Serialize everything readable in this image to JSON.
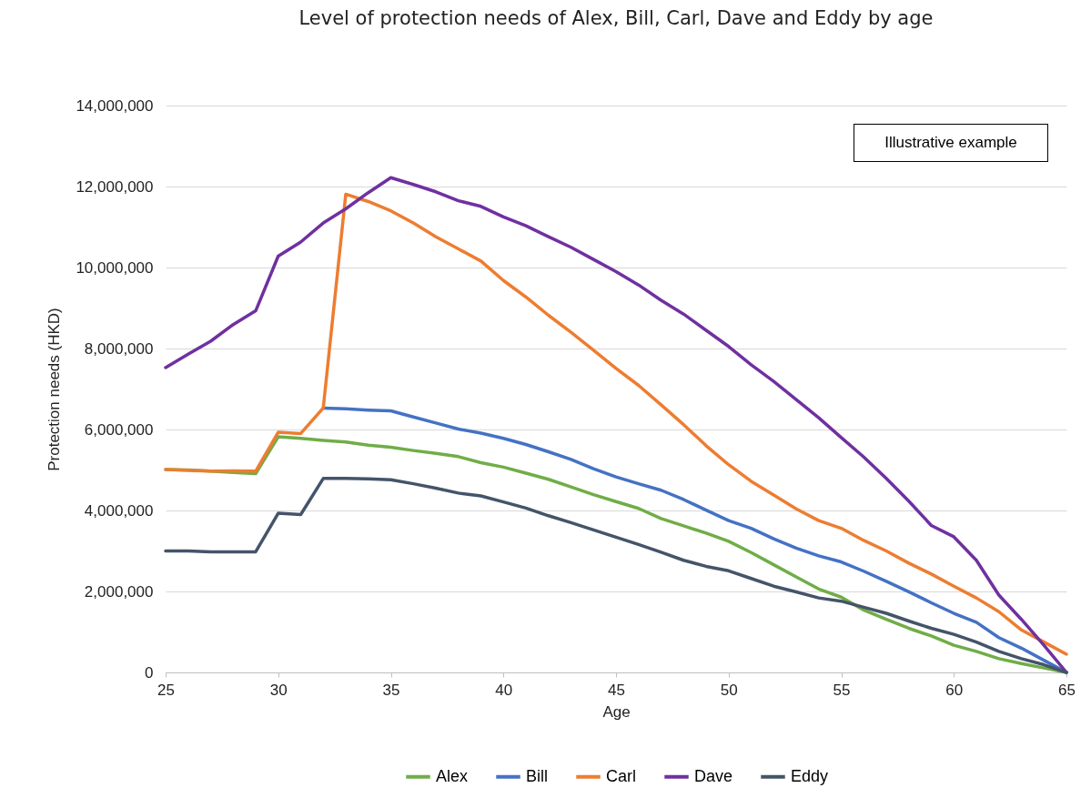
{
  "chart_data": {
    "type": "line",
    "title": "Level of protection needs of Alex, Bill, Carl, Dave and Eddy by age",
    "xlabel": "Age",
    "ylabel": "Protection needs (HKD)",
    "annotations": [
      "Illustrative example"
    ],
    "x": [
      25,
      26,
      27,
      28,
      29,
      30,
      31,
      32,
      33,
      34,
      35,
      36,
      37,
      38,
      39,
      40,
      41,
      42,
      43,
      44,
      45,
      46,
      47,
      48,
      49,
      50,
      51,
      52,
      53,
      54,
      55,
      56,
      57,
      58,
      59,
      60,
      61,
      62,
      63,
      64,
      65
    ],
    "series": [
      {
        "name": "Alex",
        "color": "#70ad47",
        "values": [
          5010000,
          5000000,
          4970000,
          4940000,
          4910000,
          5820000,
          5780000,
          5730000,
          5690000,
          5610000,
          5560000,
          5480000,
          5410000,
          5330000,
          5180000,
          5070000,
          4920000,
          4770000,
          4580000,
          4390000,
          4220000,
          4050000,
          3800000,
          3620000,
          3440000,
          3240000,
          2960000,
          2660000,
          2360000,
          2060000,
          1860000,
          1540000,
          1310000,
          1090000,
          900000,
          670000,
          520000,
          340000,
          220000,
          110000,
          0
        ]
      },
      {
        "name": "Bill",
        "color": "#4472c4",
        "values": [
          null,
          null,
          null,
          null,
          null,
          null,
          null,
          6530000,
          6510000,
          6480000,
          6460000,
          6310000,
          6160000,
          6010000,
          5910000,
          5780000,
          5630000,
          5450000,
          5260000,
          5030000,
          4830000,
          4660000,
          4500000,
          4270000,
          4010000,
          3750000,
          3560000,
          3300000,
          3070000,
          2880000,
          2730000,
          2500000,
          2250000,
          1990000,
          1720000,
          1460000,
          1240000,
          860000,
          600000,
          300000,
          0
        ]
      },
      {
        "name": "Carl",
        "color": "#ed7d31",
        "values": [
          5010000,
          4990000,
          4970000,
          4980000,
          4970000,
          5930000,
          5900000,
          6530000,
          11810000,
          11630000,
          11400000,
          11100000,
          10760000,
          10460000,
          10160000,
          9680000,
          9270000,
          8820000,
          8400000,
          7960000,
          7510000,
          7090000,
          6610000,
          6120000,
          5600000,
          5130000,
          4720000,
          4380000,
          4040000,
          3750000,
          3560000,
          3260000,
          3000000,
          2700000,
          2430000,
          2130000,
          1840000,
          1500000,
          1050000,
          750000,
          450000
        ]
      },
      {
        "name": "Dave",
        "color": "#7030a0",
        "values": [
          7530000,
          7860000,
          8180000,
          8590000,
          8930000,
          10280000,
          10630000,
          11100000,
          11450000,
          11850000,
          12220000,
          12050000,
          11870000,
          11650000,
          11510000,
          11250000,
          11030000,
          10760000,
          10500000,
          10200000,
          9900000,
          9570000,
          9190000,
          8850000,
          8450000,
          8050000,
          7600000,
          7190000,
          6740000,
          6290000,
          5800000,
          5320000,
          4790000,
          4230000,
          3630000,
          3350000,
          2770000,
          1910000,
          1310000,
          670000,
          0
        ]
      },
      {
        "name": "Eddy",
        "color": "#44546a",
        "values": [
          3000000,
          3000000,
          2980000,
          2980000,
          2980000,
          3930000,
          3900000,
          4790000,
          4790000,
          4780000,
          4760000,
          4660000,
          4550000,
          4430000,
          4360000,
          4210000,
          4060000,
          3870000,
          3700000,
          3520000,
          3340000,
          3160000,
          2970000,
          2770000,
          2620000,
          2510000,
          2320000,
          2130000,
          1990000,
          1840000,
          1760000,
          1610000,
          1460000,
          1270000,
          1090000,
          940000,
          750000,
          520000,
          340000,
          190000,
          0
        ]
      }
    ],
    "xlim": [
      25,
      65
    ],
    "xticks": [
      25,
      30,
      35,
      40,
      45,
      50,
      55,
      60,
      65
    ],
    "ylim": [
      0,
      14000000
    ],
    "yticks": [
      {
        "value": 0,
        "label": "0"
      },
      {
        "value": 2000000,
        "label": "2,000,000"
      },
      {
        "value": 4000000,
        "label": "4,000,000"
      },
      {
        "value": 6000000,
        "label": "6,000,000"
      },
      {
        "value": 8000000,
        "label": "8,000,000"
      },
      {
        "value": 10000000,
        "label": "10,000,000"
      },
      {
        "value": 12000000,
        "label": "12,000,000"
      },
      {
        "value": 14000000,
        "label": "14,000,000"
      }
    ],
    "grid": "y",
    "legend": "bottom"
  }
}
